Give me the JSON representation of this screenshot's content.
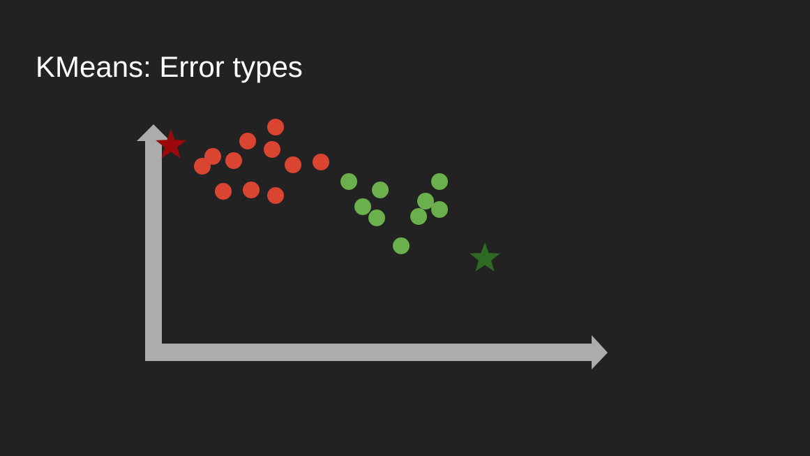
{
  "slide": {
    "title": "KMeans: Error types"
  },
  "colors": {
    "background": "#222222",
    "title_text": "#ffffff",
    "axis": "#acacac",
    "cluster_red_point": "#d94530",
    "cluster_green_point": "#6ab04c",
    "centroid_red": "#9b0a0a",
    "centroid_green": "#2e6a22"
  },
  "diagram": {
    "axes": {
      "x_arrow": true,
      "y_arrow": true,
      "tick_labels": false
    },
    "clusters": [
      {
        "id": "red",
        "point_color": "#d94530",
        "centroid_color": "#9b0a0a",
        "centroid_marker": "star-icon",
        "centroid": {
          "x": 0.9,
          "y": 11.6
        },
        "points": [
          {
            "x": 3.9,
            "y": 12.9
          },
          {
            "x": 3.1,
            "y": 11.9
          },
          {
            "x": 3.8,
            "y": 11.3
          },
          {
            "x": 2.1,
            "y": 10.8
          },
          {
            "x": 2.7,
            "y": 10.5
          },
          {
            "x": 4.4,
            "y": 10.2
          },
          {
            "x": 5.2,
            "y": 10.4
          },
          {
            "x": 1.8,
            "y": 10.1
          },
          {
            "x": 2.4,
            "y": 8.3
          },
          {
            "x": 3.2,
            "y": 8.4
          },
          {
            "x": 3.9,
            "y": 8.0
          }
        ]
      },
      {
        "id": "green",
        "point_color": "#6ab04c",
        "centroid_color": "#2e6a22",
        "centroid_marker": "star-icon",
        "centroid": {
          "x": 9.9,
          "y": 3.5
        },
        "points": [
          {
            "x": 6.0,
            "y": 9.0
          },
          {
            "x": 6.9,
            "y": 8.4
          },
          {
            "x": 6.4,
            "y": 7.2
          },
          {
            "x": 6.8,
            "y": 6.4
          },
          {
            "x": 7.5,
            "y": 4.4
          },
          {
            "x": 8.0,
            "y": 6.5
          },
          {
            "x": 8.2,
            "y": 7.6
          },
          {
            "x": 8.6,
            "y": 9.0
          },
          {
            "x": 8.6,
            "y": 7.0
          }
        ]
      }
    ]
  }
}
